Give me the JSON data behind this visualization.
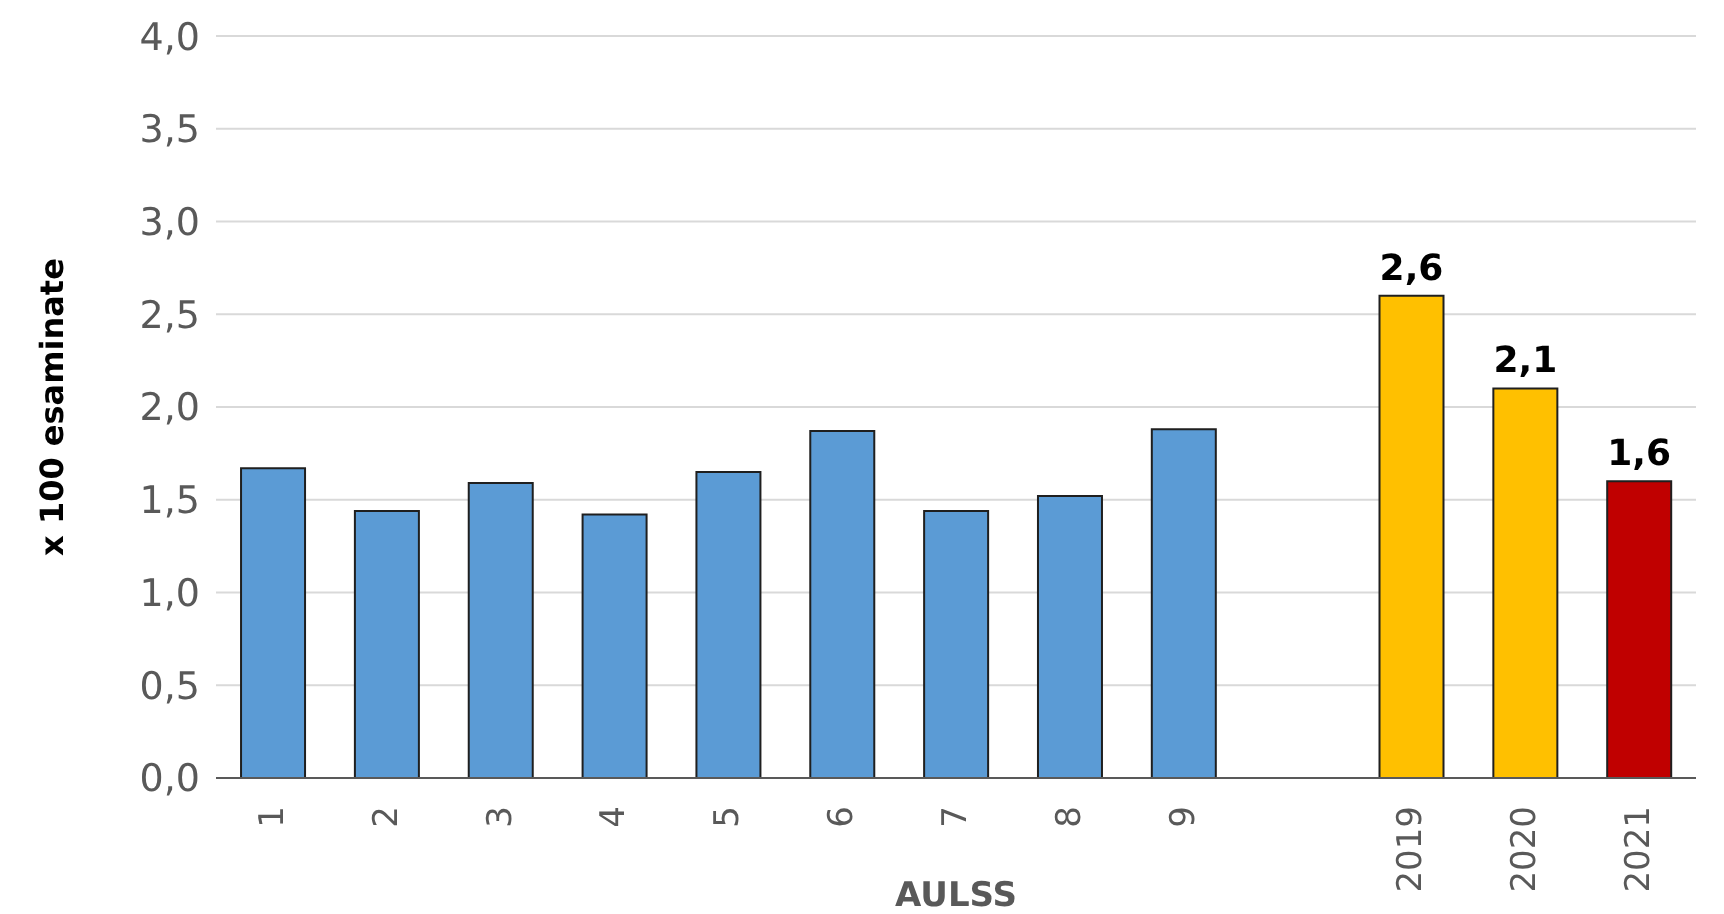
{
  "chart_data": {
    "type": "bar",
    "ylabel": "x 100 esaminate",
    "xlabel": "AULSS",
    "categories": [
      "1",
      "2",
      "3",
      "4",
      "5",
      "6",
      "7",
      "8",
      "9",
      null,
      "2019",
      "2020",
      "2021"
    ],
    "values": [
      1.67,
      1.44,
      1.59,
      1.42,
      1.65,
      1.87,
      1.44,
      1.52,
      1.88,
      null,
      2.6,
      2.1,
      1.6
    ],
    "colors": [
      "#5b9bd5",
      "#5b9bd5",
      "#5b9bd5",
      "#5b9bd5",
      "#5b9bd5",
      "#5b9bd5",
      "#5b9bd5",
      "#5b9bd5",
      "#5b9bd5",
      "#5b9bd5",
      "#ffc000",
      "#ffc000",
      "#c00000"
    ],
    "value_labels": [
      null,
      null,
      null,
      null,
      null,
      null,
      null,
      null,
      null,
      null,
      "2,6",
      "2,1",
      "1,6"
    ],
    "ylim": [
      0,
      4
    ],
    "yticks": [
      {
        "value": 0,
        "label": "0,0"
      },
      {
        "value": 0.5,
        "label": "0,5"
      },
      {
        "value": 1,
        "label": "1,0"
      },
      {
        "value": 1.5,
        "label": "1,5"
      },
      {
        "value": 2,
        "label": "2,0"
      },
      {
        "value": 2.5,
        "label": "2,5"
      },
      {
        "value": 3,
        "label": "3,0"
      },
      {
        "value": 3.5,
        "label": "3,5"
      },
      {
        "value": 4,
        "label": "4,0"
      }
    ],
    "grid": "y"
  }
}
